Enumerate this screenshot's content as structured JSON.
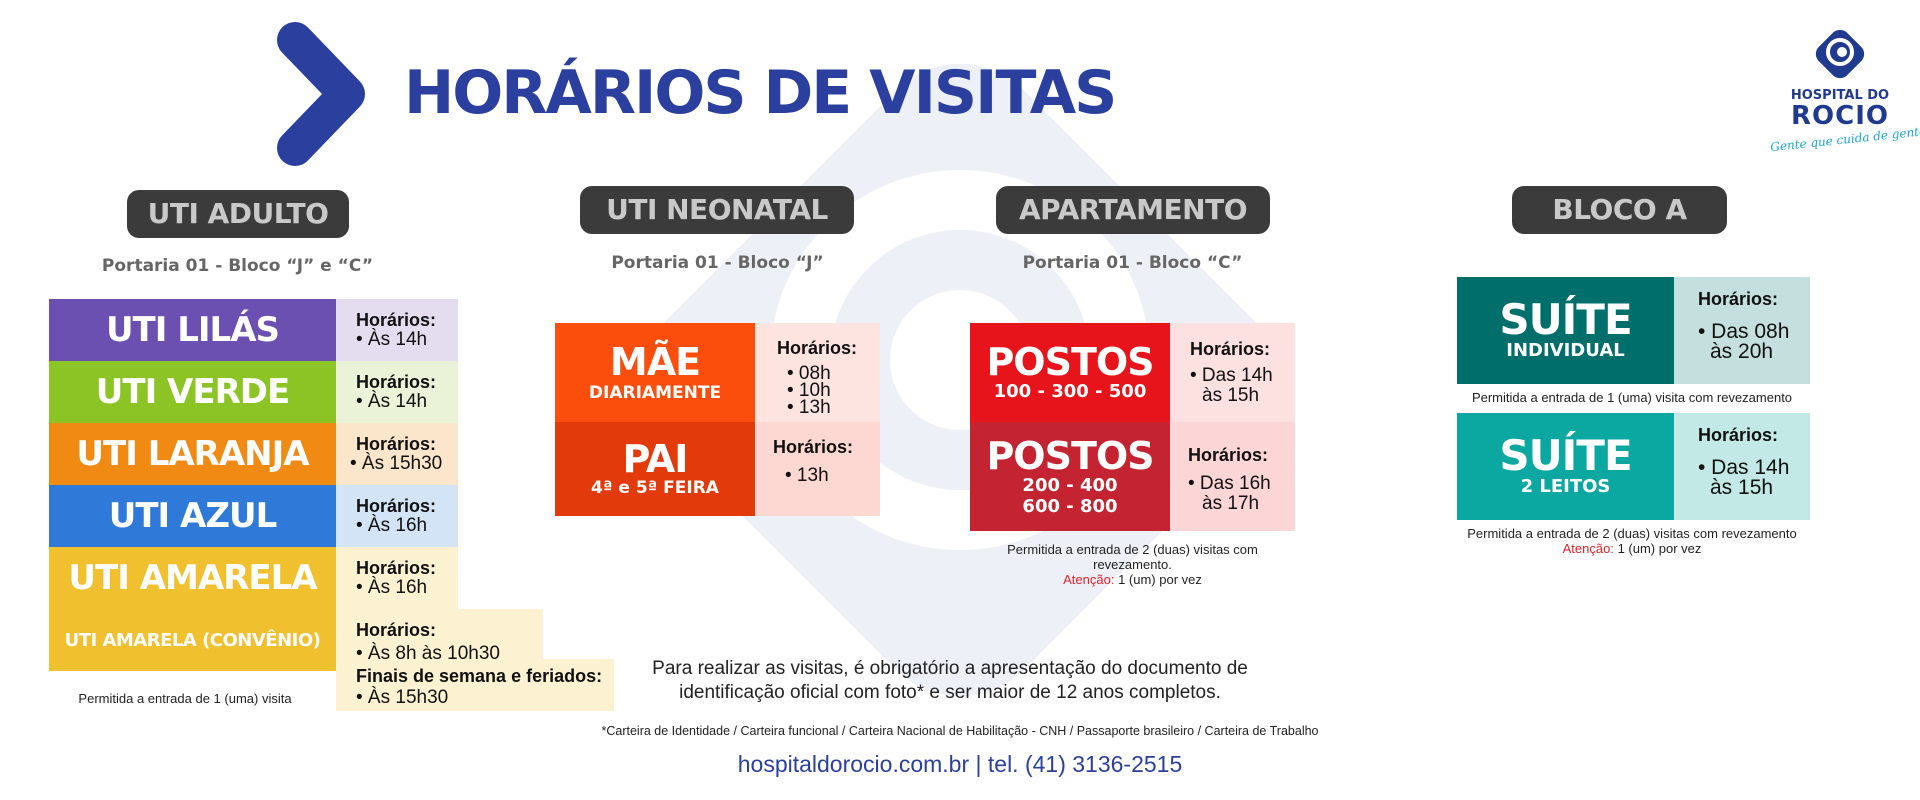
{
  "colors": {
    "title_blue": "#2b3f9e",
    "pill_bg": "#3b3b3b",
    "lilas": "#6b4fb1",
    "verde": "#8cc325",
    "laranja": "#f08a12",
    "azul": "#2f7ad8",
    "amarela": "#f0c02e",
    "mae": "#fb4e0c",
    "pai": "#e23a0a",
    "postos1": "#e8141c",
    "postos2": "#c42332",
    "suite1": "#006f6b",
    "suite2": "#0aa8a0",
    "warning": "#e0252b"
  },
  "header": {
    "title": "HORÁRIOS DE VISITAS"
  },
  "logo": {
    "name_line1": "HOSPITAL DO",
    "name_line2": "ROCIO",
    "tagline": "Gente que cuida de gente!"
  },
  "sections": {
    "uti_adulto": {
      "heading": "UTI ADULTO",
      "portaria": "Portaria 01 - Bloco “J” e “C”",
      "rows": [
        {
          "name": "UTI LILÁS",
          "label": "Horários:",
          "time": "• Às 14h"
        },
        {
          "name": "UTI VERDE",
          "label": "Horários:",
          "time": "• Às 14h"
        },
        {
          "name": "UTI LARANJA",
          "label": "Horários:",
          "time": "• Às 15h30"
        },
        {
          "name": "UTI AZUL",
          "label": "Horários:",
          "time": "• Às 16h"
        },
        {
          "name": "UTI AMARELA",
          "label": "Horários:",
          "time": "• Às 16h"
        },
        {
          "name": "UTI AMARELA (CONVÊNIO)",
          "label": "Horários:",
          "time": "• Às 8h às 10h30",
          "label2": "Finais de semana e feriados:",
          "time2": "• Às 15h30"
        }
      ],
      "note": "Permitida a entrada de 1 (uma) visita"
    },
    "uti_neonatal": {
      "heading": "UTI NEONATAL",
      "portaria": "Portaria 01 - Bloco “J”",
      "mae": {
        "title": "MÃE",
        "subtitle": "DIARIAMENTE",
        "label": "Horários:",
        "times": [
          "• 08h",
          "• 10h",
          "• 13h"
        ]
      },
      "pai": {
        "title": "PAI",
        "subtitle": "4ª e 5ª FEIRA",
        "label": "Horários:",
        "times": [
          "• 13h"
        ]
      }
    },
    "apartamento": {
      "heading": "APARTAMENTO",
      "portaria": "Portaria 01 - Bloco “C”",
      "postos1": {
        "title": "POSTOS",
        "subtitle": "100 - 300 - 500",
        "label": "Horários:",
        "time_line1": "• Das 14h",
        "time_line2": "às 15h"
      },
      "postos2": {
        "title": "POSTOS",
        "subtitle_line1": "200 - 400",
        "subtitle_line2": "600 - 800",
        "label": "Horários:",
        "time_line1": "• Das 16h",
        "time_line2": "às 17h"
      },
      "note_line1": "Permitida a entrada de 2 (duas) visitas com",
      "note_line2": "revezamento.",
      "warning_label": "Atenção:",
      "warning_text": " 1 (um) por vez"
    },
    "bloco_a": {
      "heading": "BLOCO A",
      "suite1": {
        "title": "SUÍTE",
        "subtitle": "INDIVIDUAL",
        "label": "Horários:",
        "time_line1": "• Das 08h",
        "time_line2": "às 20h"
      },
      "note1": "Permitida a entrada de 1 (uma) visita com revezamento",
      "suite2": {
        "title": "SUÍTE",
        "subtitle": "2 LEITOS",
        "label": "Horários:",
        "time_line1": "• Das 14h",
        "time_line2": "às 15h"
      },
      "note2": "Permitida a entrada de 2 (duas) visitas com revezamento",
      "warning_label": "Atenção:",
      "warning_text": " 1 (um) por vez"
    }
  },
  "footer": {
    "line1": "Para realizar as visitas, é obrigatório a apresentação do documento de",
    "line2": "identificação oficial com foto* e ser maior de 12 anos completos.",
    "documents": "*Carteira de Identidade / Carteira funcional / Carteira Nacional de Habilitação - CNH / Passaporte brasileiro / Carteira de Trabalho",
    "contact": "hospitaldorocio.com.br | tel. (41) 3136-2515"
  }
}
